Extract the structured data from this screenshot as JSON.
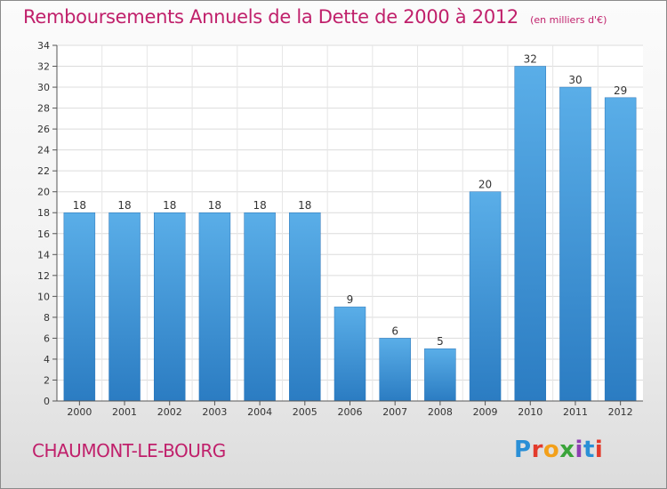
{
  "chart_data": {
    "type": "bar",
    "title": "Remboursements Annuels de la Dette de 2000 à 2012",
    "subtitle": "(en milliers d'€)",
    "categories": [
      "2000",
      "2001",
      "2002",
      "2003",
      "2004",
      "2005",
      "2006",
      "2007",
      "2008",
      "2009",
      "2010",
      "2011",
      "2012"
    ],
    "values": [
      18,
      18,
      18,
      18,
      18,
      18,
      9,
      6,
      5,
      20,
      32,
      30,
      29
    ],
    "ylim": [
      0,
      34
    ],
    "yticks": [
      0,
      2,
      4,
      6,
      8,
      10,
      12,
      14,
      16,
      18,
      20,
      22,
      24,
      26,
      28,
      30,
      32,
      34
    ],
    "grid": true,
    "bar_color": "#3a8fd8",
    "data_labels": true
  },
  "footer": {
    "commune": "CHAUMONT-LE-BOURG",
    "logo_letters": [
      "P",
      "r",
      "o",
      "x",
      "i",
      "t",
      "i"
    ]
  }
}
